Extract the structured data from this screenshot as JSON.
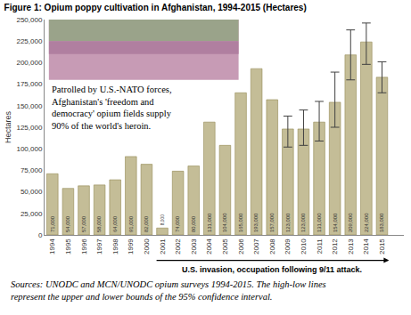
{
  "chart_data": {
    "type": "bar",
    "title": "Figure 1: Opium poppy cultivation in Afghanistan, 1994-2015 (Hectares)",
    "y_label": "Hectares",
    "categories": [
      "1994",
      "1995",
      "1996",
      "1997",
      "1998",
      "1999",
      "2000",
      "2001",
      "2002",
      "2003",
      "2004",
      "2005",
      "2006",
      "2007",
      "2008",
      "2009",
      "2010",
      "2011",
      "2012",
      "2013",
      "2014",
      "2015"
    ],
    "values": [
      71000,
      54000,
      57000,
      58000,
      64000,
      91000,
      82000,
      8000,
      74000,
      80000,
      131000,
      104000,
      165000,
      193000,
      157000,
      123000,
      123000,
      131000,
      154000,
      209000,
      224000,
      183000
    ],
    "value_labels": [
      "71,000",
      "54,000",
      "57,000",
      "58,000",
      "64,000",
      "91,000",
      "82,000",
      "8,000",
      "74,000",
      "80,000",
      "131,000",
      "104,000",
      "165,000",
      "193,000",
      "157,000",
      "123,000",
      "123,000",
      "131,000",
      "154,000",
      "209,000",
      "224,000",
      "183,000"
    ],
    "error_low": [
      null,
      null,
      null,
      null,
      null,
      null,
      null,
      null,
      null,
      null,
      null,
      null,
      null,
      null,
      null,
      102000,
      104000,
      109000,
      125000,
      180000,
      198000,
      165000
    ],
    "error_high": [
      null,
      null,
      null,
      null,
      null,
      null,
      null,
      null,
      null,
      null,
      null,
      null,
      null,
      null,
      null,
      138000,
      145000,
      155000,
      189000,
      238000,
      246000,
      201000
    ],
    "color": "#c4bd97",
    "ylim": [
      0,
      250000
    ],
    "yticks": [
      0,
      {
        "value": 25000,
        "label": "25,000"
      },
      {
        "value": 50000,
        "label": "50,000"
      },
      {
        "value": 75000,
        "label": "75,000"
      },
      {
        "value": 100000,
        "label": "100,000"
      },
      {
        "value": 125000,
        "label": "125,000"
      },
      {
        "value": 150000,
        "label": "150,000"
      },
      {
        "value": 175000,
        "label": "175,000"
      },
      {
        "value": 200000,
        "label": "200,000"
      },
      {
        "value": 225000,
        "label": "225,000"
      },
      {
        "value": 250000,
        "label": "250,000"
      }
    ],
    "grid": false,
    "data_labels": true,
    "caption": [
      "Patrolled by U.S.-NATO forces,",
      "Afghanistan's 'freedom and",
      "democracy' opium fields supply",
      "90% of the world's heroin."
    ],
    "period_note": "U.S. invasion, occupation following 9/11 attack.",
    "period_start": "2001",
    "period_end": "2015",
    "sources": [
      "Sources: UNODC and MCN/UNODC opium surveys 1994-2015. The high-low lines",
      "represent the upper and lower bounds of the 95% confidence interval."
    ]
  }
}
